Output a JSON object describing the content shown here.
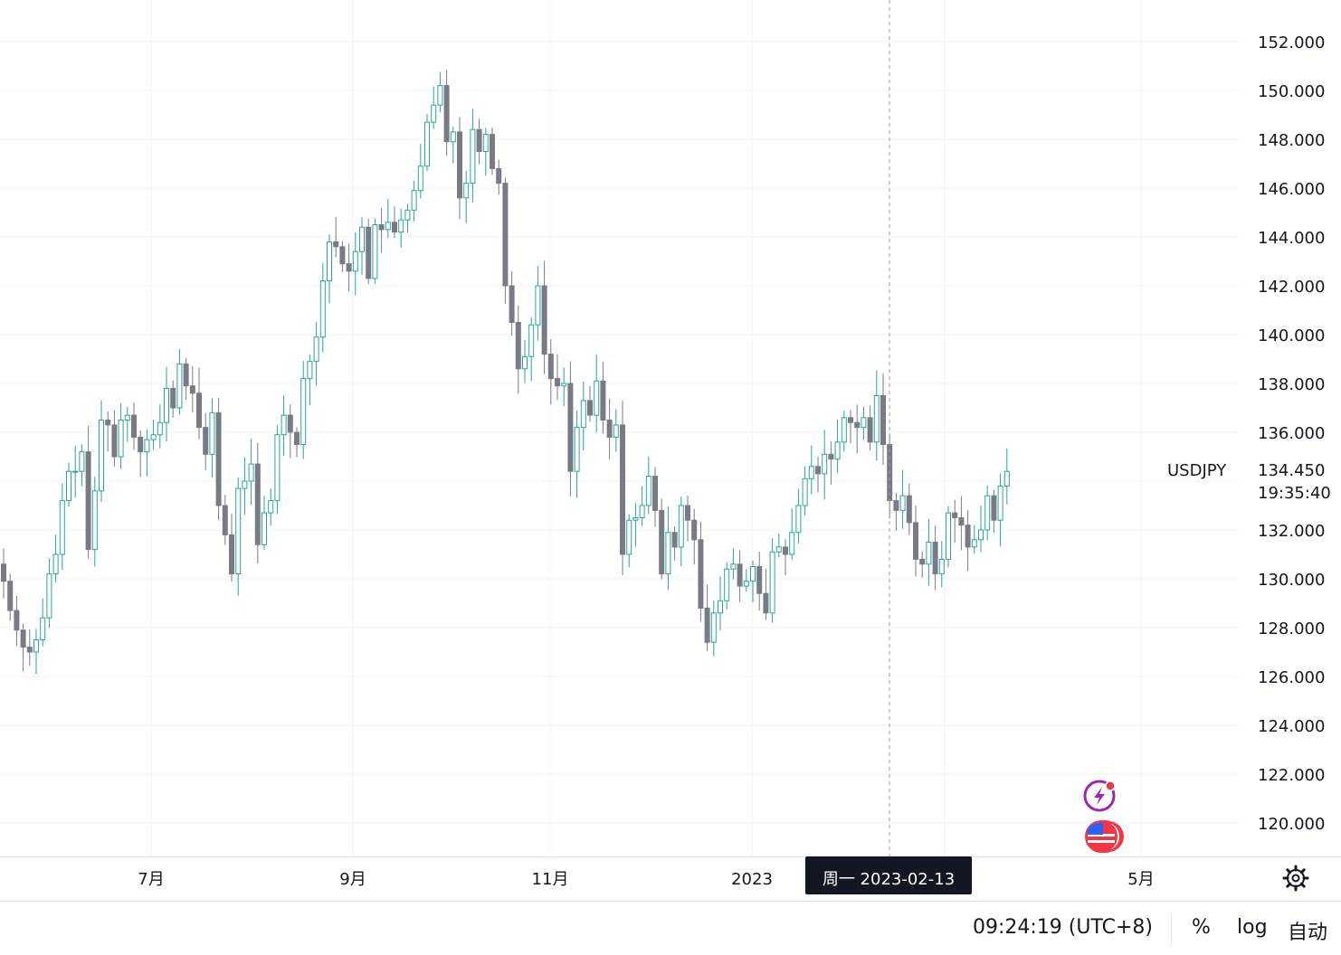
{
  "symbol": "USDJPY",
  "last_price_label": "134.450",
  "countdown": "19:35:40",
  "crosshair_date": "周一 2023-02-13",
  "clock": "09:24:19 (UTC+8)",
  "controls": {
    "percent": "%",
    "log": "log",
    "auto": "自动"
  },
  "y_axis": {
    "ticks": [
      "152.000",
      "150.000",
      "148.000",
      "146.000",
      "144.000",
      "142.000",
      "140.000",
      "138.000",
      "136.000",
      "132.000",
      "130.000",
      "128.000",
      "126.000",
      "124.000",
      "122.000",
      "120.000"
    ],
    "tick_values": [
      152,
      150,
      148,
      146,
      144,
      142,
      140,
      138,
      136,
      132,
      130,
      128,
      126,
      124,
      122,
      120
    ],
    "range": [
      118.7,
      153.8
    ]
  },
  "x_axis": {
    "labels": [
      "7月",
      "9月",
      "11月",
      "2023",
      "5月"
    ]
  },
  "colors": {
    "up": "#26a69a",
    "down": "#787b86",
    "grid": "#f0f3fa",
    "crosshair_bg": "#131722",
    "icon_purple": "#9c27b0",
    "icon_red": "#f23645"
  },
  "icons": {
    "settings": "gear-icon",
    "events": "lightning-icon",
    "flag": "us-flag-icon"
  },
  "chart_data": {
    "type": "candlestick",
    "series_name": "USDJPY",
    "ylim": [
      118.7,
      153.8
    ],
    "x_labels": [
      "7月",
      "9月",
      "11月",
      "2023",
      "5月"
    ],
    "closes": [
      129.9,
      128.7,
      127.9,
      127.2,
      127.0,
      127.5,
      128.4,
      130.2,
      131.0,
      133.2,
      134.4,
      134.4,
      135.2,
      131.2,
      133.6,
      136.5,
      136.3,
      135.0,
      136.5,
      136.7,
      135.8,
      135.2,
      135.7,
      135.9,
      136.4,
      137.8,
      137.0,
      138.8,
      137.9,
      137.6,
      136.2,
      135.1,
      136.8,
      133.0,
      131.8,
      130.2,
      133.7,
      134.0,
      134.7,
      131.4,
      132.7,
      133.2,
      135.9,
      136.7,
      136.0,
      135.5,
      138.2,
      138.9,
      139.9,
      142.2,
      143.8,
      143.6,
      142.9,
      142.6,
      143.4,
      144.4,
      142.3,
      144.5,
      144.3,
      144.6,
      144.2,
      144.7,
      145.1,
      145.9,
      146.9,
      148.7,
      149.4,
      150.2,
      147.9,
      148.3,
      145.6,
      146.2,
      148.4,
      147.5,
      148.2,
      146.8,
      146.2,
      142.0,
      140.5,
      138.6,
      139.1,
      140.4,
      142.0,
      139.2,
      138.2,
      137.9,
      138.0,
      134.4,
      136.2,
      137.3,
      136.7,
      138.1,
      136.5,
      135.8,
      136.3,
      131.0,
      132.4,
      132.5,
      133.0,
      134.2,
      132.8,
      130.2,
      131.9,
      131.3,
      133.0,
      132.4,
      131.6,
      128.8,
      127.4,
      128.6,
      129.1,
      130.4,
      130.6,
      129.7,
      129.9,
      130.5,
      129.4,
      128.6,
      131.1,
      131.3,
      131.0,
      131.9,
      133.0,
      134.1,
      134.6,
      134.3,
      135.1,
      134.9,
      135.6,
      136.6,
      136.4,
      136.2,
      136.6,
      135.6,
      137.5,
      135.5,
      133.2,
      132.8,
      133.4,
      132.3,
      130.8,
      130.6,
      131.5,
      130.2,
      130.8,
      132.7,
      132.5,
      132.2,
      131.3,
      131.6,
      132.0,
      133.4,
      132.4,
      133.8,
      134.4
    ]
  }
}
